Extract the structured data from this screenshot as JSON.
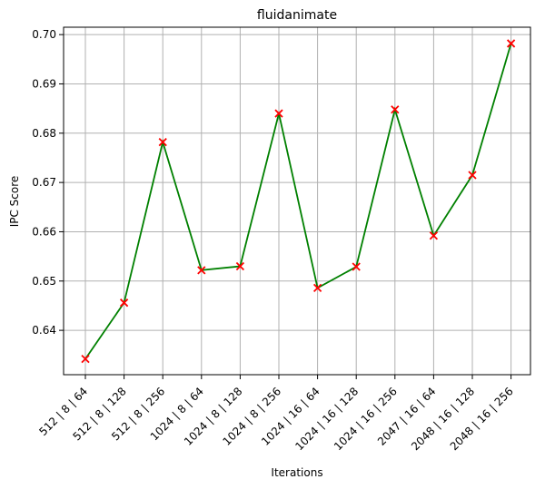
{
  "chart_data": {
    "type": "line",
    "title": "fluidanimate",
    "xlabel": "Iterations",
    "ylabel": "IPC Score",
    "categories": [
      "512 | 8 | 64",
      "512 | 8 | 128",
      "512 | 8 | 256",
      "1024 | 8 | 64",
      "1024 | 8 | 128",
      "1024 | 8 | 256",
      "1024 | 16 | 64",
      "1024 | 16 | 128",
      "1024 | 16 | 256",
      "2047 | 16 | 64",
      "2048 | 16 | 128",
      "2048 | 16 | 256"
    ],
    "series": [
      {
        "values": [
          0.6342,
          0.6456,
          0.6782,
          0.6522,
          0.653,
          0.684,
          0.6486,
          0.6529,
          0.6848,
          0.6592,
          0.6715,
          0.6982
        ],
        "line_color": "#008000",
        "marker": "x",
        "marker_color": "#ff0000"
      }
    ],
    "ylim": [
      0.631,
      0.7015
    ],
    "yticks": [
      "0.64",
      "0.65",
      "0.66",
      "0.67",
      "0.68",
      "0.69",
      "0.70"
    ],
    "grid": true
  }
}
